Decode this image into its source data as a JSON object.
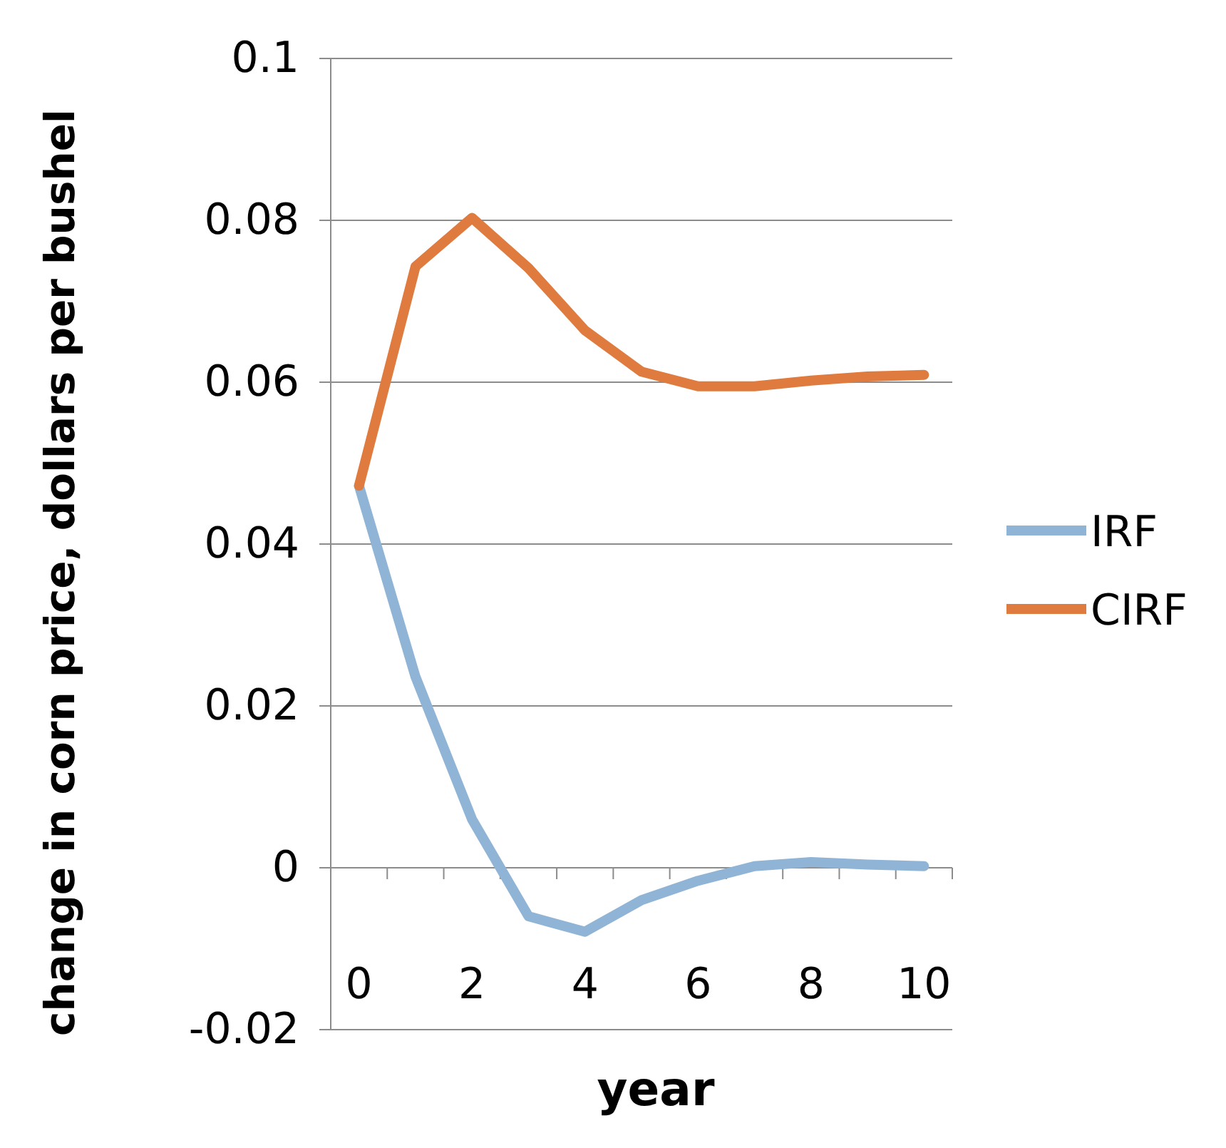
{
  "chart_data": {
    "type": "line",
    "xlabel": "year",
    "ylabel": "change in corn price, dollars per bushel",
    "categories": [
      "0",
      null,
      "2",
      null,
      "4",
      null,
      "6",
      null,
      "8",
      null,
      "10"
    ],
    "series": [
      {
        "name": "IRF",
        "color": "#8fb4d6",
        "values": [
          0.0472,
          0.0236,
          0.006,
          -0.006,
          -0.0079,
          -0.004,
          -0.0016,
          0.0002,
          0.0007,
          0.0004,
          0.0002
        ]
      },
      {
        "name": "CIRF",
        "color": "#e07b3f",
        "values": [
          0.0472,
          0.0743,
          0.0803,
          0.0741,
          0.0664,
          0.0613,
          0.0595,
          0.0595,
          0.0602,
          0.0607,
          0.0609
        ]
      }
    ],
    "ylim": [
      -0.02,
      0.1
    ],
    "yticks": [
      -0.02,
      0,
      0.02,
      0.04,
      0.06,
      0.08,
      0.1
    ],
    "grid": "y",
    "legend": "right",
    "marker": "none",
    "line_style": "solid"
  }
}
